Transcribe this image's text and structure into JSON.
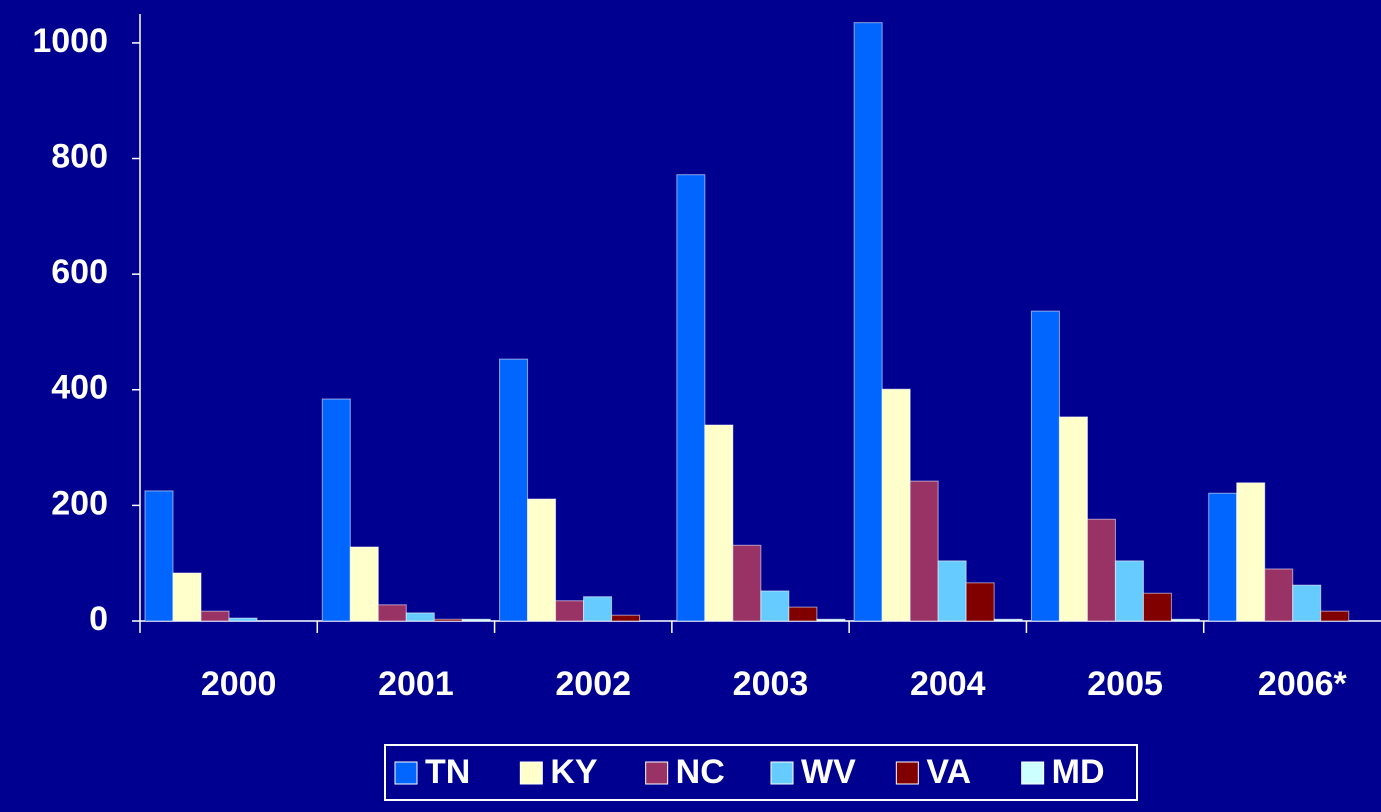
{
  "chart_data": {
    "type": "bar",
    "categories": [
      "2000",
      "2001",
      "2002",
      "2003",
      "2004",
      "2005",
      "2006*"
    ],
    "series": [
      {
        "name": "TN",
        "color": "#0066ff",
        "values": [
          225,
          384,
          453,
          772,
          1035,
          536,
          221
        ]
      },
      {
        "name": "KY",
        "color": "#ffffcc",
        "values": [
          83,
          128,
          211,
          339,
          401,
          353,
          239
        ]
      },
      {
        "name": "NC",
        "color": "#993366",
        "values": [
          17,
          28,
          35,
          131,
          242,
          176,
          90
        ]
      },
      {
        "name": "WV",
        "color": "#66ccff",
        "values": [
          5,
          14,
          42,
          52,
          104,
          104,
          62
        ]
      },
      {
        "name": "VA",
        "color": "#800000",
        "values": [
          0,
          3,
          10,
          24,
          66,
          48,
          17
        ]
      },
      {
        "name": "MD",
        "color": "#ccffff",
        "values": [
          0,
          3,
          0,
          3,
          3,
          3,
          0
        ]
      }
    ],
    "ylim": [
      0,
      1050
    ],
    "yticks": [
      0,
      200,
      400,
      600,
      800,
      1000
    ],
    "legend": "bottom"
  }
}
